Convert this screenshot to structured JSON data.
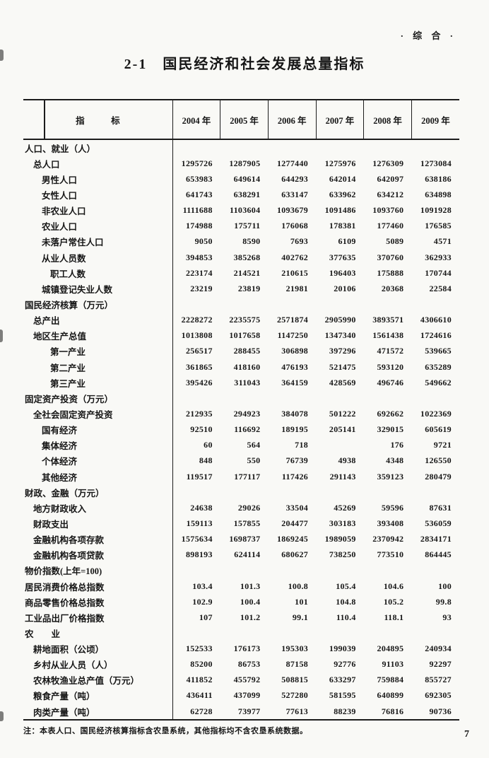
{
  "page": {
    "corner_label": "·  综  合  ·",
    "title": "2-1　国民经济和社会发展总量指标",
    "footnote": "注：本表人口、国民经济核算指标含农垦系统，其他指标均不含农垦系统数据。",
    "page_number": "7"
  },
  "table": {
    "stub_header": "指　　　标",
    "year_headers": [
      "2004 年",
      "2005 年",
      "2006 年",
      "2007 年",
      "2008 年",
      "2009 年"
    ],
    "rows": [
      {
        "label": "人口、就业（人）",
        "indent": 0,
        "values": [
          "",
          "",
          "",
          "",
          "",
          ""
        ]
      },
      {
        "label": "总人口",
        "indent": 1,
        "values": [
          "1295726",
          "1287905",
          "1277440",
          "1275976",
          "1276309",
          "1273084"
        ]
      },
      {
        "label": "男性人口",
        "indent": 2,
        "values": [
          "653983",
          "649614",
          "644293",
          "642014",
          "642097",
          "638186"
        ]
      },
      {
        "label": "女性人口",
        "indent": 2,
        "values": [
          "641743",
          "638291",
          "633147",
          "633962",
          "634212",
          "634898"
        ]
      },
      {
        "label": "非农业人口",
        "indent": 2,
        "values": [
          "1111688",
          "1103604",
          "1093679",
          "1091486",
          "1093760",
          "1091928"
        ]
      },
      {
        "label": "农业人口",
        "indent": 2,
        "values": [
          "174988",
          "175711",
          "176068",
          "178381",
          "177460",
          "176585"
        ]
      },
      {
        "label": "未落户常住人口",
        "indent": 2,
        "values": [
          "9050",
          "8590",
          "7693",
          "6109",
          "5089",
          "4571"
        ]
      },
      {
        "label": "从业人员数",
        "indent": 2,
        "values": [
          "394853",
          "385268",
          "402762",
          "377635",
          "370760",
          "362933"
        ]
      },
      {
        "label": "职工人数",
        "indent": 3,
        "values": [
          "223174",
          "214521",
          "210615",
          "196403",
          "175888",
          "170744"
        ]
      },
      {
        "label": "城镇登记失业人数",
        "indent": 2,
        "values": [
          "23219",
          "23819",
          "21981",
          "20106",
          "20368",
          "22584"
        ]
      },
      {
        "label": "国民经济核算（万元）",
        "indent": 0,
        "values": [
          "",
          "",
          "",
          "",
          "",
          ""
        ]
      },
      {
        "label": "总产出",
        "indent": 1,
        "values": [
          "2228272",
          "2235575",
          "2571874",
          "2905990",
          "3893571",
          "4306610"
        ]
      },
      {
        "label": "地区生产总值",
        "indent": 1,
        "values": [
          "1013808",
          "1017658",
          "1147250",
          "1347340",
          "1561438",
          "1724616"
        ]
      },
      {
        "label": "第一产业",
        "indent": 3,
        "values": [
          "256517",
          "288455",
          "306898",
          "397296",
          "471572",
          "539665"
        ]
      },
      {
        "label": "第二产业",
        "indent": 3,
        "values": [
          "361865",
          "418160",
          "476193",
          "521475",
          "593120",
          "635289"
        ]
      },
      {
        "label": "第三产业",
        "indent": 3,
        "values": [
          "395426",
          "311043",
          "364159",
          "428569",
          "496746",
          "549662"
        ]
      },
      {
        "label": "固定资产投资（万元）",
        "indent": 0,
        "values": [
          "",
          "",
          "",
          "",
          "",
          ""
        ]
      },
      {
        "label": "全社会固定资产投资",
        "indent": 1,
        "values": [
          "212935",
          "294923",
          "384078",
          "501222",
          "692662",
          "1022369"
        ]
      },
      {
        "label": "国有经济",
        "indent": 2,
        "values": [
          "92510",
          "116692",
          "189195",
          "205141",
          "329015",
          "605619"
        ]
      },
      {
        "label": "集体经济",
        "indent": 2,
        "values": [
          "60",
          "564",
          "718",
          "",
          "176",
          "9721"
        ]
      },
      {
        "label": "个体经济",
        "indent": 2,
        "values": [
          "848",
          "550",
          "76739",
          "4938",
          "4348",
          "126550"
        ]
      },
      {
        "label": "其他经济",
        "indent": 2,
        "values": [
          "119517",
          "177117",
          "117426",
          "291143",
          "359123",
          "280479"
        ]
      },
      {
        "label": "财政、金融（万元）",
        "indent": 0,
        "values": [
          "",
          "",
          "",
          "",
          "",
          ""
        ]
      },
      {
        "label": "地方财政收入",
        "indent": 1,
        "values": [
          "24638",
          "29026",
          "33504",
          "45269",
          "59596",
          "87631"
        ]
      },
      {
        "label": "财政支出",
        "indent": 1,
        "values": [
          "159113",
          "157855",
          "204477",
          "303183",
          "393408",
          "536059"
        ]
      },
      {
        "label": "金融机构各项存款",
        "indent": 1,
        "values": [
          "1575634",
          "1698737",
          "1869245",
          "1989059",
          "2370942",
          "2834171"
        ]
      },
      {
        "label": "金融机构各项贷款",
        "indent": 1,
        "values": [
          "898193",
          "624114",
          "680627",
          "738250",
          "773510",
          "864445"
        ]
      },
      {
        "label": "物价指数(上年=100)",
        "indent": 0,
        "values": [
          "",
          "",
          "",
          "",
          "",
          ""
        ]
      },
      {
        "label": "居民消费价格总指数",
        "indent": 0,
        "values": [
          "103.4",
          "101.3",
          "100.8",
          "105.4",
          "104.6",
          "100"
        ]
      },
      {
        "label": "商品零售价格总指数",
        "indent": 0,
        "values": [
          "102.9",
          "100.4",
          "101",
          "104.8",
          "105.2",
          "99.8"
        ]
      },
      {
        "label": "工业品出厂价格指数",
        "indent": 0,
        "values": [
          "107",
          "101.2",
          "99.1",
          "110.4",
          "118.1",
          "93"
        ]
      },
      {
        "label": "农　　业",
        "indent": 0,
        "values": [
          "",
          "",
          "",
          "",
          "",
          ""
        ]
      },
      {
        "label": "耕地面积（公顷）",
        "indent": 1,
        "values": [
          "152533",
          "176173",
          "195303",
          "199039",
          "204895",
          "240934"
        ]
      },
      {
        "label": "乡村从业人员（人）",
        "indent": 1,
        "values": [
          "85200",
          "86753",
          "87158",
          "92776",
          "91103",
          "92297"
        ]
      },
      {
        "label": "农林牧渔业总产值（万元）",
        "indent": 1,
        "values": [
          "411852",
          "455792",
          "508815",
          "633297",
          "759884",
          "855727"
        ]
      },
      {
        "label": "粮食产量（吨）",
        "indent": 1,
        "values": [
          "436411",
          "437099",
          "527280",
          "581595",
          "640899",
          "692305"
        ]
      },
      {
        "label": "肉类产量（吨）",
        "indent": 1,
        "values": [
          "62728",
          "73977",
          "77613",
          "88239",
          "76816",
          "90736"
        ]
      }
    ]
  }
}
